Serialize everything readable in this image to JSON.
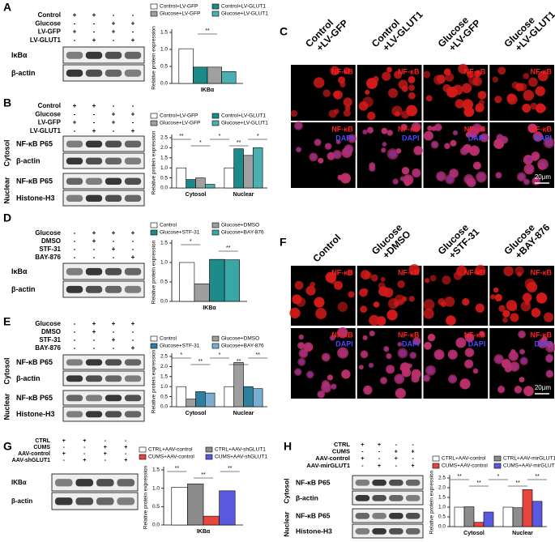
{
  "blots": [
    {
      "label": "A",
      "conditions": [
        {
          "label": "Control",
          "signs": [
            "+",
            "+",
            "-",
            "-"
          ]
        },
        {
          "label": "Glucose",
          "signs": [
            "-",
            "-",
            "+",
            "+"
          ]
        },
        {
          "label": "LV-GFP",
          "signs": [
            "+",
            "-",
            "+",
            "-"
          ]
        },
        {
          "label": "LV-GLUT1",
          "signs": [
            "-",
            "+",
            "-",
            "+"
          ]
        }
      ],
      "groups": [
        {
          "rows": [
            "IκBα",
            "β-actin"
          ]
        }
      ]
    },
    {
      "label": "B",
      "conditions": [
        {
          "label": "Control",
          "signs": [
            "+",
            "+",
            "-",
            "-"
          ]
        },
        {
          "label": "Glucose",
          "signs": [
            "-",
            "-",
            "+",
            "+"
          ]
        },
        {
          "label": "LV-GFP",
          "signs": [
            "+",
            "-",
            "+",
            "-"
          ]
        },
        {
          "label": "LV-GLUT1",
          "signs": [
            "-",
            "+",
            "-",
            "+"
          ]
        }
      ],
      "groups": [
        {
          "name": "Cytosol",
          "rows": [
            "NF-κB P65",
            "β-actin"
          ]
        },
        {
          "name": "Nuclear",
          "rows": [
            "NF-κB P65",
            "Histone-H3"
          ]
        }
      ]
    },
    {
      "label": "D",
      "conditions": [
        {
          "label": "Glucose",
          "signs": [
            "-",
            "+",
            "+",
            "+"
          ]
        },
        {
          "label": "DMSO",
          "signs": [
            "-",
            "+",
            "-",
            "-"
          ]
        },
        {
          "label": "STF-31",
          "signs": [
            "-",
            "-",
            "+",
            "-"
          ]
        },
        {
          "label": "BAY-876",
          "signs": [
            "-",
            "-",
            "-",
            "+"
          ]
        }
      ],
      "groups": [
        {
          "rows": [
            "IκBα",
            "β-actin"
          ]
        }
      ]
    },
    {
      "label": "E",
      "conditions": [
        {
          "label": "Glucose",
          "signs": [
            "-",
            "+",
            "+",
            "+"
          ]
        },
        {
          "label": "DMSO",
          "signs": [
            "-",
            "+",
            "-",
            "-"
          ]
        },
        {
          "label": "STF-31",
          "signs": [
            "-",
            "-",
            "+",
            "-"
          ]
        },
        {
          "label": "BAY-876",
          "signs": [
            "-",
            "-",
            "-",
            "+"
          ]
        }
      ],
      "groups": [
        {
          "name": "Cytosol",
          "rows": [
            "NF-κB P65",
            "β-actin"
          ]
        },
        {
          "name": "Nuclear",
          "rows": [
            "NF-κB P65",
            "Histone-H3"
          ]
        }
      ]
    },
    {
      "label": "G",
      "conditions": [
        {
          "label": "CTRL",
          "signs": [
            "+",
            "+",
            "-",
            "-"
          ]
        },
        {
          "label": "CUMS",
          "signs": [
            "-",
            "-",
            "+",
            "+"
          ]
        },
        {
          "label": "AAV-control",
          "signs": [
            "+",
            "-",
            "+",
            "-"
          ]
        },
        {
          "label": "AAV-shGLUT1",
          "signs": [
            "-",
            "+",
            "-",
            "+"
          ]
        }
      ],
      "groups": [
        {
          "rows": [
            "IKBα",
            "β-actin"
          ]
        }
      ]
    },
    {
      "label": "H",
      "conditions": [
        {
          "label": "CTRL",
          "signs": [
            "+",
            "+",
            "-",
            "-"
          ]
        },
        {
          "label": "CUMS",
          "signs": [
            "-",
            "-",
            "+",
            "+"
          ]
        },
        {
          "label": "AAV-control",
          "signs": [
            "+",
            "-",
            "+",
            "-"
          ]
        },
        {
          "label": "AAV-mirGLUT1",
          "signs": [
            "-",
            "+",
            "-",
            "+"
          ]
        }
      ],
      "groups": [
        {
          "name": "Cytosol",
          "rows": [
            "NF-κB P65",
            "β-actin"
          ]
        },
        {
          "name": "Nuclear",
          "rows": [
            "NF-κB P65",
            "Histone-H3"
          ]
        }
      ]
    }
  ],
  "chart_data": [
    {
      "type": "bar",
      "y_label": "Relative protein expression",
      "categories": [
        "IKBα"
      ],
      "series": [
        {
          "name": "Control+LV-GFP",
          "color": "#ffffff",
          "values": [
            1.02
          ]
        },
        {
          "name": "Control+LV-GLUT1",
          "color": "#1a8a8a",
          "values": [
            0.48
          ]
        },
        {
          "name": "Glucose+LV-GFP",
          "color": "#a0a0a0",
          "values": [
            0.48
          ]
        },
        {
          "name": "Glucose+LV-GLUT1",
          "color": "#4db0b0",
          "values": [
            0.35
          ]
        }
      ],
      "ylim": [
        0,
        1.5
      ],
      "yticks": [
        {
          "value": 0,
          "label": "0.0"
        },
        0.5,
        {
          "value": 1,
          "label": "1.0"
        },
        1.5
      ],
      "annotations": [
        "**"
      ]
    },
    {
      "type": "bar",
      "y_label": "Relative protein expression",
      "categories": [
        "Cytosol",
        "Nuclear"
      ],
      "series": [
        {
          "name": "Control+LV-GFP",
          "color": "#ffffff",
          "values": [
            1.0,
            1.0
          ]
        },
        {
          "name": "Control+LV-GLUT1",
          "color": "#1a8a8a",
          "values": [
            0.42,
            1.95
          ]
        },
        {
          "name": "Glucose+LV-GFP",
          "color": "#a0a0a0",
          "values": [
            0.5,
            1.62
          ]
        },
        {
          "name": "Glucose+LV-GLUT1",
          "color": "#4db0b0",
          "values": [
            0.18,
            2.0
          ]
        }
      ],
      "ylim": [
        0,
        2.5
      ],
      "yticks": [
        {
          "value": 0,
          "label": "0.0"
        },
        0.5,
        {
          "value": 1,
          "label": "1.0"
        },
        1.5,
        {
          "value": 2,
          "label": "2.0"
        },
        2.5
      ],
      "annotations": [
        "**",
        "*",
        "*",
        "**",
        "*"
      ]
    },
    {
      "type": "bar",
      "y_label": "Relative protein expression",
      "categories": [
        "IKBα"
      ],
      "series": [
        {
          "name": "Control",
          "color": "#ffffff",
          "values": [
            1.0
          ]
        },
        {
          "name": "Glucose+DMSO",
          "color": "#9e9e9e",
          "values": [
            0.45
          ]
        },
        {
          "name": "Glucose+STF-31",
          "color": "#1f8a8a",
          "values": [
            1.08
          ]
        },
        {
          "name": "Glucose+BAY-876",
          "color": "#3aa6a6",
          "values": [
            1.07
          ]
        }
      ],
      "ylim": [
        0,
        1.5
      ],
      "yticks": [
        {
          "value": 0,
          "label": "0.0"
        },
        0.5,
        {
          "value": 1,
          "label": "1.0"
        },
        1.5
      ],
      "annotations": [
        "*",
        "**"
      ]
    },
    {
      "type": "bar",
      "y_label": "Relative protein expression",
      "categories": [
        "Cytosol",
        "Nuclear"
      ],
      "series": [
        {
          "name": "Control",
          "color": "#ffffff",
          "values": [
            1.0,
            1.0
          ]
        },
        {
          "name": "Glucose+DMSO",
          "color": "#9e9e9e",
          "values": [
            0.38,
            2.2
          ]
        },
        {
          "name": "Glucose+STF-31",
          "color": "#2e7fa0",
          "values": [
            0.75,
            1.0
          ]
        },
        {
          "name": "Glucose+BAY-876",
          "color": "#7aaed0",
          "values": [
            0.68,
            0.9
          ]
        }
      ],
      "ylim": [
        0,
        2.5
      ],
      "yticks": [
        {
          "value": 0,
          "label": "0.0"
        },
        0.5,
        {
          "value": 1,
          "label": "1.0"
        },
        1.5,
        {
          "value": 2,
          "label": "2.0"
        },
        2.5
      ],
      "annotations": [
        "*",
        "**",
        "*",
        "**",
        "**"
      ]
    },
    {
      "type": "bar",
      "y_label": "Relative protein expression",
      "categories": [
        "IKBα"
      ],
      "series": [
        {
          "name": "CTRL+AAV-control",
          "color": "#ffffff",
          "values": [
            1.03
          ]
        },
        {
          "name": "CTRL+AAV-shGLUT1",
          "color": "#8c8c8c",
          "values": [
            1.12
          ]
        },
        {
          "name": "CUMS+AAV-control",
          "color": "#e8453c",
          "values": [
            0.24
          ]
        },
        {
          "name": "CUMS+AAV-shGLUT1",
          "color": "#5a5ae0",
          "values": [
            0.93
          ]
        }
      ],
      "ylim": [
        0,
        1.5
      ],
      "yticks": [
        {
          "value": 0,
          "label": "0.0"
        },
        0.5,
        {
          "value": 1,
          "label": "1.0"
        },
        1.5
      ],
      "annotations": [
        "**",
        "**",
        "**"
      ]
    },
    {
      "type": "bar",
      "y_label": "Relative protein expression",
      "categories": [
        "Cytosol",
        "Nuclear"
      ],
      "series": [
        {
          "name": "CTRL+AAV-control",
          "color": "#ffffff",
          "values": [
            1.0,
            1.0
          ]
        },
        {
          "name": "CTRL+AAV-mirGLUT1",
          "color": "#8c8c8c",
          "values": [
            1.02,
            0.97
          ]
        },
        {
          "name": "CUMS+AAV-control",
          "color": "#e8453c",
          "values": [
            0.22,
            1.9
          ]
        },
        {
          "name": "CUMS+AAV-mirGLUT1",
          "color": "#5a5ae0",
          "values": [
            0.75,
            1.3
          ]
        }
      ],
      "ylim": [
        0,
        2.5
      ],
      "yticks": [
        {
          "value": 0,
          "label": "0.0"
        },
        0.5,
        {
          "value": 1,
          "label": "1.0"
        },
        1.5,
        {
          "value": 2,
          "label": "2.0"
        },
        2.5
      ],
      "annotations": [
        "**",
        "**",
        "*",
        "**",
        "**"
      ]
    }
  ],
  "images": [
    {
      "label": "C",
      "columns": [
        [
          "Control",
          "+LV-GFP"
        ],
        [
          "Control",
          "+LV-GLUT1"
        ],
        [
          "Glucose",
          "+LV-GFP"
        ],
        [
          "Glucose",
          "+LV-GLUT1"
        ]
      ],
      "channels": [
        [
          "NF-κB"
        ],
        [
          "NF-κB",
          "DAPI"
        ]
      ],
      "scale_bar": "20μm"
    },
    {
      "label": "F",
      "columns": [
        [
          "Control"
        ],
        [
          "Glucose",
          "+DMSO"
        ],
        [
          "Glucose",
          "+STF-31"
        ],
        [
          "Glucose",
          "+BAY-876"
        ]
      ],
      "channels": [
        [
          "NF-κB"
        ],
        [
          "NF-κB",
          "DAPI"
        ]
      ],
      "scale_bar": "20μm"
    }
  ]
}
